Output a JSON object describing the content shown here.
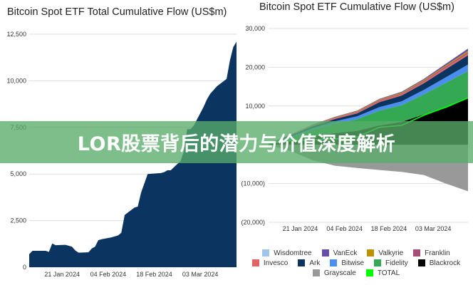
{
  "banner": {
    "text": "LOR股票背后的潜力与价值深度解析"
  },
  "chart_data": [
    {
      "type": "area",
      "title": "Bitcoin Spot ETF Total Cumulative Flow (US$m)",
      "xlabel": "",
      "ylabel": "",
      "ylim": [
        0,
        12500
      ],
      "yticks": [
        0,
        2500,
        5000,
        7500,
        10000,
        12500
      ],
      "ytick_labels": [
        "0",
        "2,500",
        "5,000",
        "7,500",
        "10,000",
        "12,500"
      ],
      "xtick_labels": [
        "21 Jan 2024",
        "04 Feb 2024",
        "18 Feb 2024",
        "03 Mar 2024"
      ],
      "xtick_dates": [
        "2024-01-21",
        "2024-02-04",
        "2024-02-18",
        "2024-03-03"
      ],
      "grid": true,
      "color": "#0b3560",
      "x": [
        "2024-01-11",
        "2024-01-12",
        "2024-01-16",
        "2024-01-17",
        "2024-01-18",
        "2024-01-19",
        "2024-01-22",
        "2024-01-23",
        "2024-01-24",
        "2024-01-25",
        "2024-01-26",
        "2024-01-29",
        "2024-01-30",
        "2024-01-31",
        "2024-02-01",
        "2024-02-02",
        "2024-02-05",
        "2024-02-06",
        "2024-02-07",
        "2024-02-08",
        "2024-02-09",
        "2024-02-12",
        "2024-02-13",
        "2024-02-14",
        "2024-02-15",
        "2024-02-16",
        "2024-02-20",
        "2024-02-21",
        "2024-02-22",
        "2024-02-23",
        "2024-02-26",
        "2024-02-27",
        "2024-02-28",
        "2024-02-29",
        "2024-03-01",
        "2024-03-04",
        "2024-03-05",
        "2024-03-06",
        "2024-03-07",
        "2024-03-08",
        "2024-03-11",
        "2024-03-12",
        "2024-03-13",
        "2024-03-14"
      ],
      "values": [
        700,
        880,
        880,
        820,
        1270,
        1180,
        1200,
        1150,
        1100,
        900,
        780,
        800,
        1000,
        1100,
        1450,
        1500,
        1600,
        1650,
        1700,
        1850,
        2800,
        3200,
        3250,
        4000,
        4500,
        5000,
        5050,
        5100,
        5200,
        5200,
        5700,
        6200,
        7400,
        7400,
        7600,
        8600,
        9000,
        9300,
        9500,
        9700,
        10100,
        11100,
        11800,
        12100
      ]
    },
    {
      "type": "area",
      "stacked": true,
      "title": "Bitcoin Spot ETF Cumulative Flow (US$m)",
      "xlabel": "",
      "ylabel": "",
      "ylim": [
        -20000,
        30000
      ],
      "yticks": [
        -20000,
        -10000,
        0,
        10000,
        20000,
        30000
      ],
      "ytick_labels": [
        "(20,000)",
        "(10,000)",
        "",
        "10,000",
        "20,000",
        "30,000"
      ],
      "xtick_labels": [
        "21 Jan 2024",
        "04 Feb 2024",
        "18 Feb 2024",
        "03 Mar 2024"
      ],
      "xtick_dates": [
        "2024-01-21",
        "2024-02-04",
        "2024-02-18",
        "2024-03-03"
      ],
      "grid": true,
      "legend": "bottom",
      "x": [
        "2024-01-11",
        "2024-01-18",
        "2024-01-25",
        "2024-02-01",
        "2024-02-08",
        "2024-02-15",
        "2024-02-22",
        "2024-02-29",
        "2024-03-07",
        "2024-03-14"
      ],
      "series": [
        {
          "name": "Blackrock",
          "color": "#000000",
          "values": [
            100,
            1000,
            2200,
            3000,
            3600,
            5000,
            5900,
            7800,
            9500,
            12000
          ]
        },
        {
          "name": "Fidelity",
          "color": "#34a853",
          "values": [
            100,
            800,
            1600,
            2400,
            3000,
            3800,
            4300,
            5200,
            6500,
            7000
          ]
        },
        {
          "name": "Bitwise",
          "color": "#4a8ef0",
          "values": [
            50,
            300,
            500,
            650,
            750,
            900,
            1000,
            1150,
            1400,
            1700
          ]
        },
        {
          "name": "Ark",
          "color": "#0b3560",
          "values": [
            50,
            300,
            500,
            600,
            750,
            1300,
            1500,
            1700,
            2100,
            2400
          ]
        },
        {
          "name": "Invesco",
          "color": "#e06666",
          "values": [
            20,
            100,
            150,
            200,
            250,
            300,
            330,
            370,
            400,
            450
          ]
        },
        {
          "name": "Franklin",
          "color": "#a64d79",
          "values": [
            10,
            60,
            100,
            120,
            150,
            200,
            220,
            250,
            300,
            350
          ]
        },
        {
          "name": "Valkyrie",
          "color": "#bf9000",
          "values": [
            10,
            50,
            100,
            150,
            180,
            200,
            220,
            250,
            300,
            350
          ]
        },
        {
          "name": "VanEck",
          "color": "#674ea7",
          "values": [
            10,
            50,
            80,
            100,
            120,
            150,
            200,
            250,
            400,
            550
          ]
        },
        {
          "name": "Wisdomtree",
          "color": "#9fc5e8",
          "values": [
            0,
            10,
            20,
            20,
            20,
            30,
            30,
            30,
            40,
            40
          ]
        },
        {
          "name": "Grayscale",
          "color": "#999999",
          "values": [
            -100,
            -1600,
            -4000,
            -5400,
            -6000,
            -6500,
            -7000,
            -7800,
            -10000,
            -12000
          ]
        }
      ],
      "total": {
        "name": "TOTAL",
        "color": "#00ff00",
        "values": [
          300,
          1100,
          1300,
          1500,
          2000,
          4500,
          5000,
          7600,
          9700,
          12100
        ]
      },
      "legend_rows": [
        [
          "Wisdomtree",
          "VanEck",
          "Valkyrie",
          "Franklin"
        ],
        [
          "Invesco",
          "Ark",
          "Bitwise",
          "Fidelity",
          "Blackrock"
        ],
        [
          "Grayscale",
          "TOTAL"
        ]
      ]
    }
  ]
}
